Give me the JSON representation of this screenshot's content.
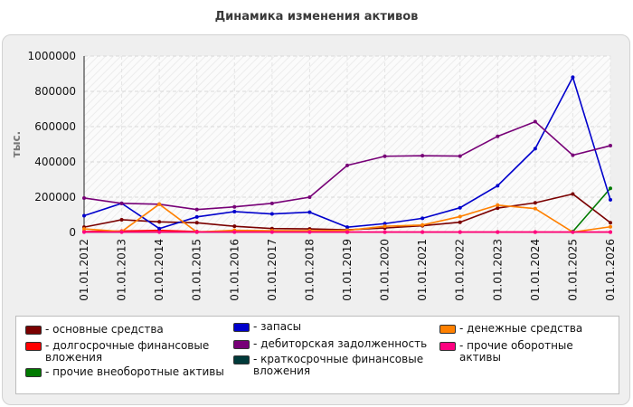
{
  "chart_data": {
    "type": "line",
    "title": "Динамика изменения активов",
    "ylabel": "тыс.",
    "xlabel": "",
    "ylim": [
      0,
      1000000
    ],
    "yticks": [
      "0",
      "200000",
      "400000",
      "600000",
      "800000",
      "1000000"
    ],
    "ytick_values": [
      0,
      200000,
      400000,
      600000,
      800000,
      1000000
    ],
    "categories": [
      "01.01.2012",
      "01.01.2013",
      "01.01.2014",
      "01.01.2015",
      "01.01.2016",
      "01.01.2017",
      "01.01.2018",
      "01.01.2019",
      "01.01.2020",
      "01.01.2021",
      "01.01.2022",
      "01.01.2023",
      "01.01.2024",
      "01.01.2025",
      "01.01.2026"
    ],
    "legend_position": "bottom",
    "series": [
      {
        "name": "- основные средства",
        "color": "#7a0000",
        "values": [
          30000,
          72000,
          60000,
          55000,
          35000,
          22000,
          20000,
          15000,
          25000,
          38000,
          58000,
          138000,
          168000,
          218000,
          55000
        ]
      },
      {
        "name": "- долгосрочные финансовые вложения",
        "color": "#ff0000",
        "values": [
          5000,
          8000,
          12000,
          5000,
          3000,
          3000,
          3000,
          2000,
          2000,
          2000,
          2000,
          2000,
          2000,
          2000,
          2000
        ]
      },
      {
        "name": "- прочие внеоборотные активы",
        "color": "#007a00",
        "values": [
          null,
          null,
          null,
          null,
          null,
          null,
          null,
          null,
          null,
          null,
          null,
          null,
          null,
          5000,
          250000
        ]
      },
      {
        "name": "- запасы",
        "color": "#0000cc",
        "values": [
          95000,
          165000,
          22000,
          88000,
          118000,
          105000,
          115000,
          30000,
          50000,
          80000,
          140000,
          265000,
          475000,
          880000,
          185000
        ]
      },
      {
        "name": "- дебиторская задолженность",
        "color": "#770077",
        "values": [
          195000,
          165000,
          160000,
          130000,
          145000,
          165000,
          200000,
          380000,
          432000,
          435000,
          433000,
          545000,
          628000,
          438000,
          492000
        ]
      },
      {
        "name": "- краткосрочные финансовые вложения",
        "color": "#003a3a",
        "values": [
          null,
          null,
          null,
          null,
          null,
          null,
          null,
          null,
          null,
          null,
          null,
          null,
          null,
          null,
          null
        ]
      },
      {
        "name": "- денежные средства",
        "color": "#ff8000",
        "values": [
          20000,
          5000,
          160000,
          2000,
          12000,
          10000,
          10000,
          12000,
          35000,
          42000,
          90000,
          155000,
          135000,
          2000,
          32000
        ]
      },
      {
        "name": "- прочие оборотные активы",
        "color": "#ff0080",
        "values": [
          2000,
          2000,
          2000,
          2000,
          2000,
          2000,
          2000,
          2000,
          2000,
          2000,
          2000,
          2000,
          2000,
          2000,
          2000
        ]
      }
    ]
  }
}
